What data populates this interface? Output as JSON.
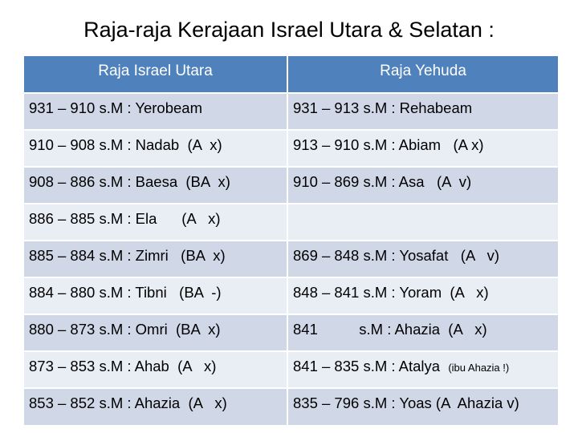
{
  "title": "Raja-raja Kerajaan Israel Utara & Selatan :",
  "table": {
    "header": [
      "Raja Israel Utara",
      "Raja Yehuda"
    ],
    "rows": [
      {
        "left": "931 – 910 s.M : Yerobeam",
        "right": "931 – 913 s.M : Rehabeam"
      },
      {
        "left": "910 – 908 s.M : Nadab  (A  x)",
        "right": "913 – 910 s.M : Abiam   (A x)"
      },
      {
        "left": "908 – 886 s.M : Baesa  (BA  x)",
        "right": "910 – 869 s.M : Asa   (A  v)"
      },
      {
        "left": "886 – 885 s.M : Ela      (A   x)"
      },
      {
        "left": "885 – 884 s.M : Zimri   (BA  x)",
        "right": "869 – 848 s.M : Yosafat   (A   v)"
      },
      {
        "left": "884 – 880 s.M : Tibni   (BA  -)",
        "right": "848 – 841 s.M : Yoram  (A   x)"
      },
      {
        "left": "880 – 873 s.M : Omri  (BA  x)",
        "right": "841          s.M : Ahazia  (A   x)"
      },
      {
        "left": "873 – 853 s.M : Ahab  (A   x)",
        "right": "841 – 835 s.M : Atalya",
        "right_note": "(ibu Ahazia !)"
      },
      {
        "left": "853 – 852 s.M : Ahazia  (A   x)",
        "right": "835 – 796 s.M : Yoas (A  Ahazia v)"
      }
    ]
  }
}
